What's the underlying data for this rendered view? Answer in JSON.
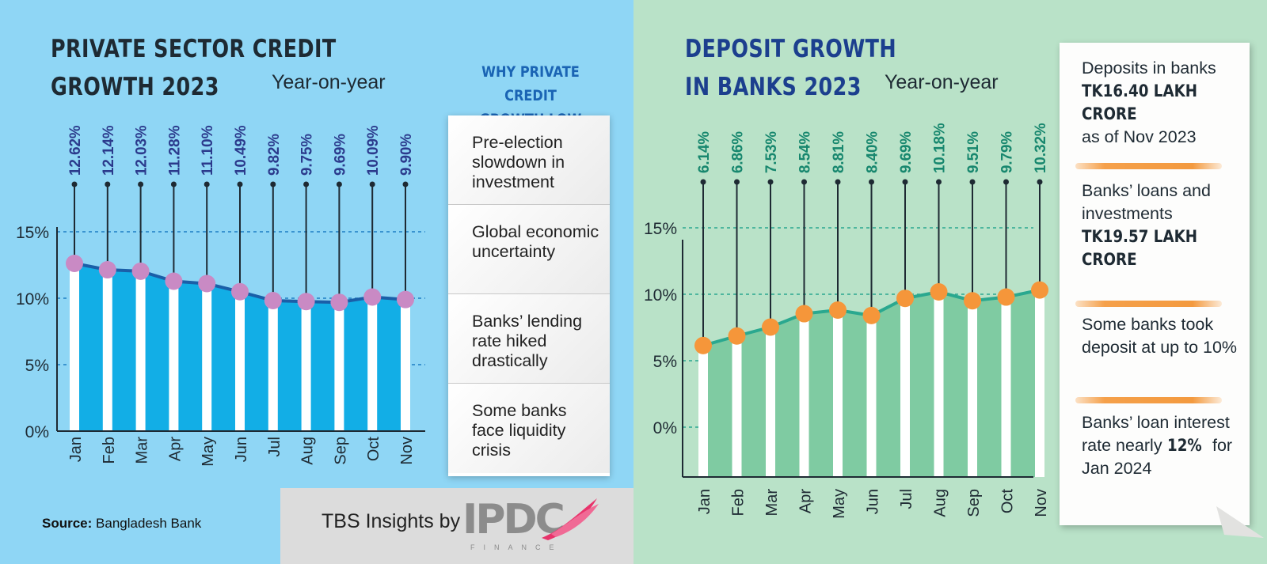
{
  "left": {
    "title_line1": "PRIVATE SECTOR CREDIT",
    "title_line2": "GROWTH 2023",
    "subtitle": "Year-on-year",
    "why_title_line1": "WHY PRIVATE CREDIT",
    "why_title_line2": "GROWTH LOW",
    "reasons": [
      "Pre-election slowdown in investment",
      "Global economic uncertainty",
      "Banks’ lending rate hiked drastically",
      "Some banks face liquidity crisis"
    ],
    "source_label": "Source:",
    "source_value": "Bangladesh Bank"
  },
  "right": {
    "title_line1": "DEPOSIT GROWTH",
    "title_line2": "IN BANKS 2023",
    "subtitle": "Year-on-year",
    "notes": [
      {
        "pre": "Deposits in banks ",
        "bold": "TK16.40 LAKH CRORE",
        "post": " as of Nov 2023"
      },
      {
        "pre": "Banks’ loans and investments ",
        "bold": "TK19.57 LAKH CRORE",
        "post": ""
      },
      {
        "pre": "Some banks took deposit at up to 10%",
        "bold": "",
        "post": ""
      },
      {
        "pre": "Banks’ loan interest rate nearly ",
        "bold": "12%",
        "post": " for Jan 2024"
      }
    ]
  },
  "footer": {
    "tbs_text": "TBS Insights by",
    "logo_text": "IPDC",
    "logo_sub": "FINANCE"
  },
  "colors": {
    "left_bg": "#8fd6f5",
    "right_bg": "#b9e2c8",
    "left_area": "#12aee6",
    "left_line": "#1a5fa8",
    "left_marker": "#c98ac4",
    "left_label": "#2b3a8c",
    "right_area": "#7fcba2",
    "right_line": "#2aa88f",
    "right_marker": "#f5963a",
    "right_label": "#17876e"
  },
  "chart_data": [
    {
      "type": "area",
      "title": "PRIVATE SECTOR CREDIT GROWTH 2023",
      "subtitle": "Year-on-year",
      "categories": [
        "Jan",
        "Feb",
        "Mar",
        "Apr",
        "May",
        "Jun",
        "Jul",
        "Aug",
        "Sep",
        "Oct",
        "Nov"
      ],
      "values": [
        12.62,
        12.14,
        12.03,
        11.28,
        11.1,
        10.49,
        9.82,
        9.75,
        9.69,
        10.09,
        9.9
      ],
      "value_labels": [
        "12.62%",
        "12.14%",
        "12.03%",
        "11.28%",
        "11.10%",
        "10.49%",
        "9.82%",
        "9.75%",
        "9.69%",
        "10.09%",
        "9.90%"
      ],
      "yticks": [
        "0%",
        "5%",
        "10%",
        "15%"
      ],
      "ylim": [
        0,
        15
      ],
      "grid": true
    },
    {
      "type": "area",
      "title": "DEPOSIT GROWTH IN BANKS 2023",
      "subtitle": "Year-on-year",
      "categories": [
        "Jan",
        "Feb",
        "Mar",
        "Apr",
        "May",
        "Jun",
        "Jul",
        "Aug",
        "Sep",
        "Oct",
        "Nov"
      ],
      "values": [
        6.14,
        6.86,
        7.53,
        8.54,
        8.81,
        8.4,
        9.69,
        10.18,
        9.51,
        9.79,
        10.32
      ],
      "value_labels": [
        "6.14%",
        "6.86%",
        "7.53%",
        "8.54%",
        "8.81%",
        "8.40%",
        "9.69%",
        "10.18%",
        "9.51%",
        "9.79%",
        "10.32%"
      ],
      "yticks": [
        "0%",
        "5%",
        "10%",
        "15%"
      ],
      "ylim": [
        0,
        15
      ],
      "grid": true
    }
  ]
}
